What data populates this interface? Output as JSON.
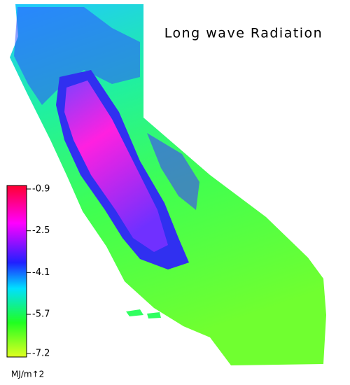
{
  "title": "Long wave Radiation",
  "colorbar": {
    "ticks": [
      -0.9,
      -2.5,
      -4.1,
      -5.7,
      -7.2
    ],
    "unit": "MJ/m↑2"
  }
}
